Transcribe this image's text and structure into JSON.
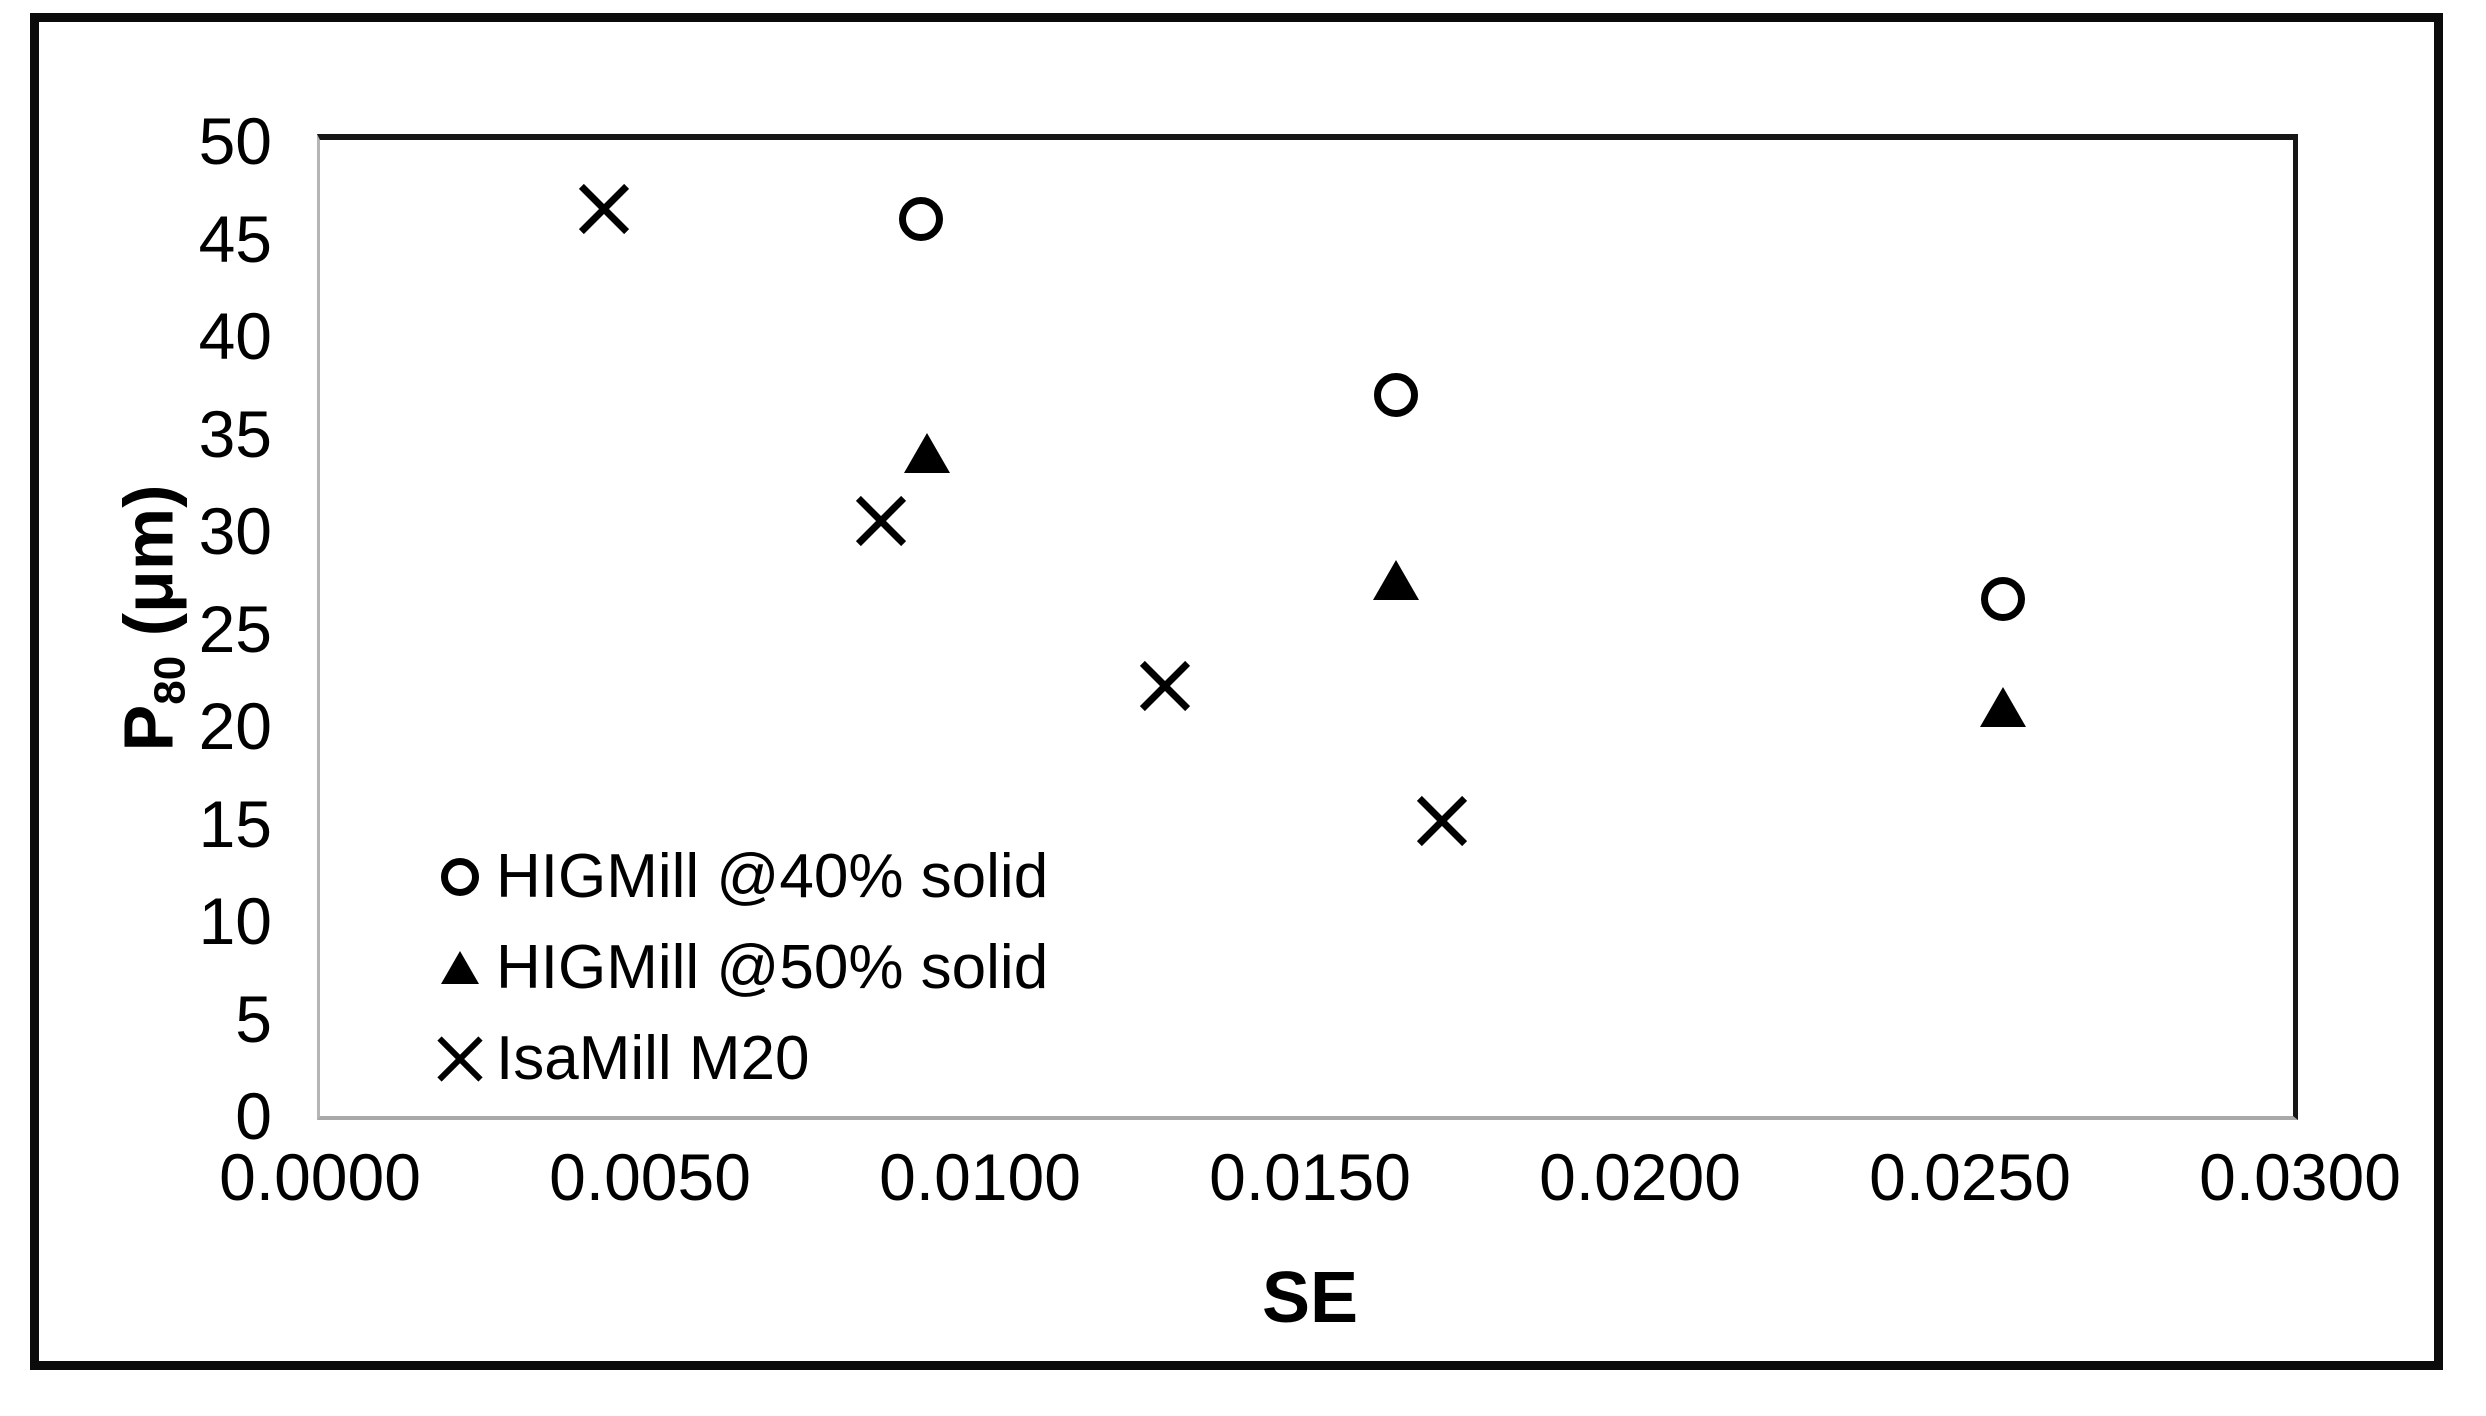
{
  "figure": {
    "background": "#ffffff",
    "frame_color": "#0b0b0b",
    "plot_border_dark": "#161616",
    "plot_border_light": "#a9a9a9",
    "marker_color": "#000000",
    "text_color": "#000000"
  },
  "chart_data": {
    "type": "scatter",
    "title": "",
    "xlabel": "SE",
    "ylabel": "P80 (μm)",
    "ylabel_parts": {
      "prefix": "P",
      "sub": "80",
      "suffix": " (μm)"
    },
    "xlim": [
      0.0,
      0.03
    ],
    "ylim": [
      0,
      50
    ],
    "grid": false,
    "legend_position": "inside-bottom-left",
    "xticks": [
      {
        "value": 0.0,
        "label": "0.0000"
      },
      {
        "value": 0.005,
        "label": "0.0050"
      },
      {
        "value": 0.01,
        "label": "0.0100"
      },
      {
        "value": 0.015,
        "label": "0.0150"
      },
      {
        "value": 0.02,
        "label": "0.0200"
      },
      {
        "value": 0.025,
        "label": "0.0250"
      },
      {
        "value": 0.03,
        "label": "0.0300"
      }
    ],
    "yticks": [
      {
        "value": 0,
        "label": "0"
      },
      {
        "value": 5,
        "label": "5"
      },
      {
        "value": 10,
        "label": "10"
      },
      {
        "value": 15,
        "label": "15"
      },
      {
        "value": 20,
        "label": "20"
      },
      {
        "value": 25,
        "label": "25"
      },
      {
        "value": 30,
        "label": "30"
      },
      {
        "value": 35,
        "label": "35"
      },
      {
        "value": 40,
        "label": "40"
      },
      {
        "value": 45,
        "label": "45"
      },
      {
        "value": 50,
        "label": "50"
      }
    ],
    "series": [
      {
        "name": "HIGMill @40% solid",
        "marker": "open-circle",
        "points": [
          {
            "x": 0.0091,
            "y": 46.0
          },
          {
            "x": 0.0163,
            "y": 37.0
          },
          {
            "x": 0.0255,
            "y": 26.5
          }
        ]
      },
      {
        "name": "HIGMill @50% solid",
        "marker": "filled-triangle",
        "points": [
          {
            "x": 0.0092,
            "y": 34.0
          },
          {
            "x": 0.0163,
            "y": 27.5
          },
          {
            "x": 0.0255,
            "y": 21.0
          }
        ]
      },
      {
        "name": "IsaMill M20",
        "marker": "x-cross",
        "points": [
          {
            "x": 0.0043,
            "y": 46.5
          },
          {
            "x": 0.0085,
            "y": 33.0
          },
          {
            "x": 0.0128,
            "y": 27.0
          },
          {
            "x": 0.017,
            "y": 22.5
          }
        ]
      }
    ]
  }
}
